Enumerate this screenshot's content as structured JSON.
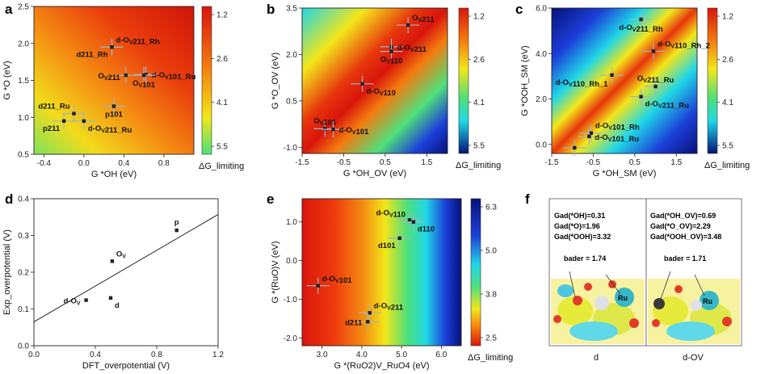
{
  "colors": {
    "red": "#d8150c",
    "orange": "#f47a0e",
    "yellow": "#f3e619",
    "green": "#4fe07a",
    "cyan": "#1fd7e6",
    "blue": "#1c3fd9",
    "navy": "#06117a"
  },
  "chart_data": [
    {
      "id": "a",
      "type": "scatter",
      "panel_letter": "a",
      "xlabel": "G *OH (eV)",
      "ylabel": "G *O (eV)",
      "xlim": [
        -0.5,
        1.1
      ],
      "ylim": [
        0.5,
        2.5
      ],
      "xticks": [
        "-0.4",
        "0.0",
        "0.4",
        "0.8"
      ],
      "xtick_values": [
        -0.4,
        0,
        0.4,
        0.8
      ],
      "yticks": [
        "0.5",
        "1.0",
        "1.5",
        "2.0",
        "2.5"
      ],
      "ytick_values": [
        0.5,
        1.0,
        1.5,
        2.0,
        2.5
      ],
      "colorbar": {
        "label": "ΔG_limiting",
        "ticks": [
          "1.2",
          "2.6",
          "4.1",
          "5.5"
        ]
      },
      "points": [
        {
          "x": 0.28,
          "y": 1.95,
          "label": "d-OV211_Rh",
          "lp": "ne"
        },
        {
          "x": 0.28,
          "y": 1.95,
          "label": "d211_Rh",
          "lp": "sw"
        },
        {
          "x": 0.62,
          "y": 1.58,
          "label": "d-OV101_Ru",
          "lp": "e"
        },
        {
          "x": 0.42,
          "y": 1.57,
          "label": "OV211",
          "lp": "w"
        },
        {
          "x": 0.6,
          "y": 1.57,
          "label": "OV101",
          "lp": "s"
        },
        {
          "x": 0.3,
          "y": 1.15,
          "label": "p101",
          "lp": "s"
        },
        {
          "x": -0.1,
          "y": 1.05,
          "label": "d211_Ru",
          "lp": "nw"
        },
        {
          "x": -0.2,
          "y": 0.95,
          "label": "p211",
          "lp": "sw"
        },
        {
          "x": 0.0,
          "y": 0.95,
          "label": "d-OV211_Ru",
          "lp": "se"
        }
      ]
    },
    {
      "id": "b",
      "type": "scatter",
      "panel_letter": "b",
      "xlabel": "G *OH_OV (eV)",
      "ylabel": "G *O_OV (eV)",
      "xlim": [
        -1.5,
        2.0
      ],
      "ylim": [
        -1.2,
        3.5
      ],
      "xticks": [
        "-1.5",
        "-0.5",
        "0.5",
        "1.5"
      ],
      "xtick_values": [
        -1.5,
        -0.5,
        0.5,
        1.5
      ],
      "yticks": [
        "-1.0",
        "0.5",
        "2.0",
        "3.5"
      ],
      "ytick_values": [
        -1.0,
        0.5,
        2.0,
        3.5
      ],
      "colorbar": {
        "label": "ΔG_limiting",
        "ticks": [
          "1.2",
          "2.6",
          "4.1",
          "5.5"
        ]
      },
      "points": [
        {
          "x": 1.05,
          "y": 2.95,
          "label": "OV211",
          "lp": "ne"
        },
        {
          "x": 0.65,
          "y": 2.25,
          "label": "d-OV211",
          "lp": "e"
        },
        {
          "x": 0.65,
          "y": 2.1,
          "label": "OV110",
          "lp": "s"
        },
        {
          "x": -0.05,
          "y": 1.05,
          "label": "d-OV110",
          "lp": "se"
        },
        {
          "x": -0.95,
          "y": -0.4,
          "label": "OV101",
          "lp": "n"
        },
        {
          "x": -0.75,
          "y": -0.42,
          "label": "d-OV101",
          "lp": "e"
        }
      ]
    },
    {
      "id": "c",
      "type": "scatter",
      "panel_letter": "c",
      "xlabel": "G *OH_SM (eV)",
      "ylabel": "G *OOH_SM (eV)",
      "xlim": [
        -1.5,
        2.0
      ],
      "ylim": [
        -0.4,
        6.0
      ],
      "xticks": [
        "-1.5",
        "-0.5",
        "0.5",
        "1.5"
      ],
      "xtick_values": [
        -1.5,
        -0.5,
        0.5,
        1.5
      ],
      "yticks": [
        "0.0",
        "2.0",
        "4.0",
        "6.0"
      ],
      "ytick_values": [
        0,
        2,
        4,
        6
      ],
      "colorbar": {
        "label": "ΔG_limiting",
        "ticks": [
          "1.2",
          "2.6",
          "4.1",
          "5.5"
        ]
      },
      "points": [
        {
          "x": 0.65,
          "y": 5.5,
          "label": "d-OV211_Rh",
          "lp": "s"
        },
        {
          "x": 0.95,
          "y": 4.1,
          "label": "d-OV110_Rh_2",
          "lp": "ne"
        },
        {
          "x": -0.05,
          "y": 3.05,
          "label": "d-OV110_Rh_1",
          "lp": "sw"
        },
        {
          "x": 1.0,
          "y": 2.55,
          "label": "OV211_Ru",
          "lp": "n"
        },
        {
          "x": 0.65,
          "y": 2.1,
          "label": "d-OV211_Ru",
          "lp": "se"
        },
        {
          "x": -0.55,
          "y": 0.5,
          "label": "d-OV101_Rh",
          "lp": "ne"
        },
        {
          "x": -0.6,
          "y": 0.35,
          "label": "d-OV101_Ru",
          "lp": "e"
        },
        {
          "x": -0.95,
          "y": -0.15,
          "label": "",
          "lp": "e"
        }
      ]
    },
    {
      "id": "d",
      "type": "scatter",
      "panel_letter": "d",
      "xlabel": "DFT_overpotential (V)",
      "ylabel": "Exp_overpotential (V)",
      "xlim": [
        0.0,
        1.2
      ],
      "ylim": [
        0.0,
        0.4
      ],
      "xticks": [
        "0.0",
        "0.4",
        "0.8",
        "1.2"
      ],
      "xtick_values": [
        0,
        0.4,
        0.8,
        1.2
      ],
      "yticks": [
        "0.0",
        "0.1",
        "0.2",
        "0.3",
        "0.4"
      ],
      "ytick_values": [
        0,
        0.1,
        0.2,
        0.3,
        0.4
      ],
      "points": [
        {
          "x": 0.34,
          "y": 0.124,
          "label": "d-OV",
          "lp": "w"
        },
        {
          "x": 0.5,
          "y": 0.13,
          "label": "d",
          "lp": "se"
        },
        {
          "x": 0.51,
          "y": 0.23,
          "label": "OV",
          "lp": "ne"
        },
        {
          "x": 0.93,
          "y": 0.314,
          "label": "p",
          "lp": "n"
        }
      ],
      "fit_line": {
        "x": [
          0.0,
          1.2
        ],
        "y": [
          0.065,
          0.357
        ]
      }
    },
    {
      "id": "e",
      "type": "scatter",
      "panel_letter": "e",
      "xlabel": "G *(RuO2)V_RuO4 (eV)",
      "ylabel": "G *(RuO)V (eV)",
      "xlim": [
        2.5,
        6.5
      ],
      "ylim": [
        -2.2,
        1.6
      ],
      "xticks": [
        "3.0",
        "4.0",
        "5.0",
        "6.0"
      ],
      "xtick_values": [
        3,
        4,
        5,
        6
      ],
      "yticks": [
        "-2.0",
        "-1.0",
        "0.0",
        "1.0"
      ],
      "ytick_values": [
        -2,
        -1,
        0,
        1
      ],
      "colorbar": {
        "label": "ΔG_limiting",
        "ticks": [
          "6.3",
          "5.0",
          "3.8",
          "2.5"
        ]
      },
      "points": [
        {
          "x": 5.2,
          "y": 1.05,
          "label": "d-OV110",
          "lp": "nw"
        },
        {
          "x": 5.3,
          "y": 1.0,
          "label": "d110",
          "lp": "se"
        },
        {
          "x": 4.95,
          "y": 0.58,
          "label": "d101",
          "lp": "sw"
        },
        {
          "x": 2.9,
          "y": -0.65,
          "label": "d-OV101",
          "lp": "ne"
        },
        {
          "x": 4.2,
          "y": -1.35,
          "label": "d-OV211",
          "lp": "ne"
        },
        {
          "x": 4.15,
          "y": -1.58,
          "label": "d211",
          "lp": "w"
        }
      ]
    }
  ],
  "panel_f": {
    "letter": "f",
    "left": {
      "g_oh": "Gad(*OH)=0.31",
      "g_o": "Gad(*O)=1.96",
      "g_ooh": "Gad(*OOH)=3.32",
      "bader": "bader = 1.74",
      "atom": "Ru",
      "caption": "d"
    },
    "right": {
      "g_oh": "Gad(*OH_OV)=0.69",
      "g_o": "Gad(*O_OV)=2.29",
      "g_ooh": "Gad(*OOH_OV)=3.48",
      "bader": "bader = 1.71",
      "atom": "Ru",
      "caption": "d-OV"
    }
  }
}
